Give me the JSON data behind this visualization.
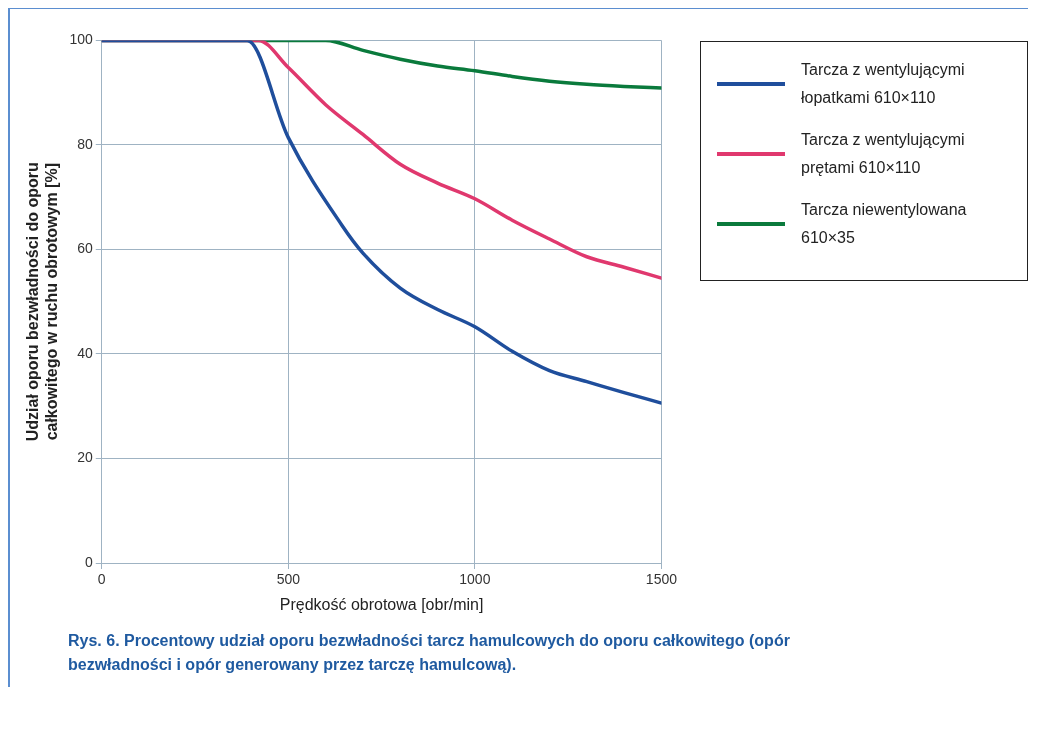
{
  "chart_data": {
    "type": "line",
    "xlabel": "Prędkość obrotowa [obr/min]",
    "ylabel": "Udział oporu bezwładności do oporu całkowitego w ruchu obrotowym [%]",
    "xlim": [
      0,
      1500
    ],
    "xticks": [
      0,
      500,
      1000,
      1500
    ],
    "ylim": [
      0,
      100
    ],
    "yticks": [
      0,
      20,
      40,
      60,
      80,
      100
    ],
    "grid": true,
    "legend": "right",
    "marker": "none",
    "line_style": "solid",
    "series": [
      {
        "name": "Tarcza z wentylującymi łopatkami 610×110",
        "color": "#1f4e9c",
        "x": [
          0,
          390,
          500,
          644,
          700,
          800,
          900,
          1000,
          1100,
          1200,
          1300,
          1400,
          1500
        ],
        "values": [
          100,
          100,
          81.4,
          64.6,
          59.3,
          52.6,
          48.5,
          45.2,
          40.5,
          36.8,
          34.7,
          32.6,
          30.6
        ]
      },
      {
        "name": "Tarcza z wentylującymi prętami 610×110",
        "color": "#e0386e",
        "x": [
          0,
          420,
          500,
          600,
          700,
          800,
          900,
          1000,
          1100,
          1200,
          1300,
          1400,
          1500
        ],
        "values": [
          100,
          100,
          94.8,
          87.7,
          82,
          76.3,
          72.7,
          69.7,
          65.6,
          62,
          58.6,
          56.6,
          54.5
        ]
      },
      {
        "name": "Tarcza niewentylowana 610×35",
        "color": "#0a7a3c",
        "x": [
          0,
          600,
          700,
          800,
          900,
          1000,
          1100,
          1200,
          1300,
          1400,
          1500
        ],
        "values": [
          100,
          100,
          98.1,
          96.4,
          95.1,
          94.2,
          93.1,
          92.2,
          91.6,
          91.2,
          90.9
        ]
      }
    ],
    "annotations": [
      "Rys. 6. Procentowy udział oporu bezwładności tarcz hamulcowych do oporu całkowitego (opór bezwładności i opór generowany przez tarczę hamulcową)."
    ]
  }
}
